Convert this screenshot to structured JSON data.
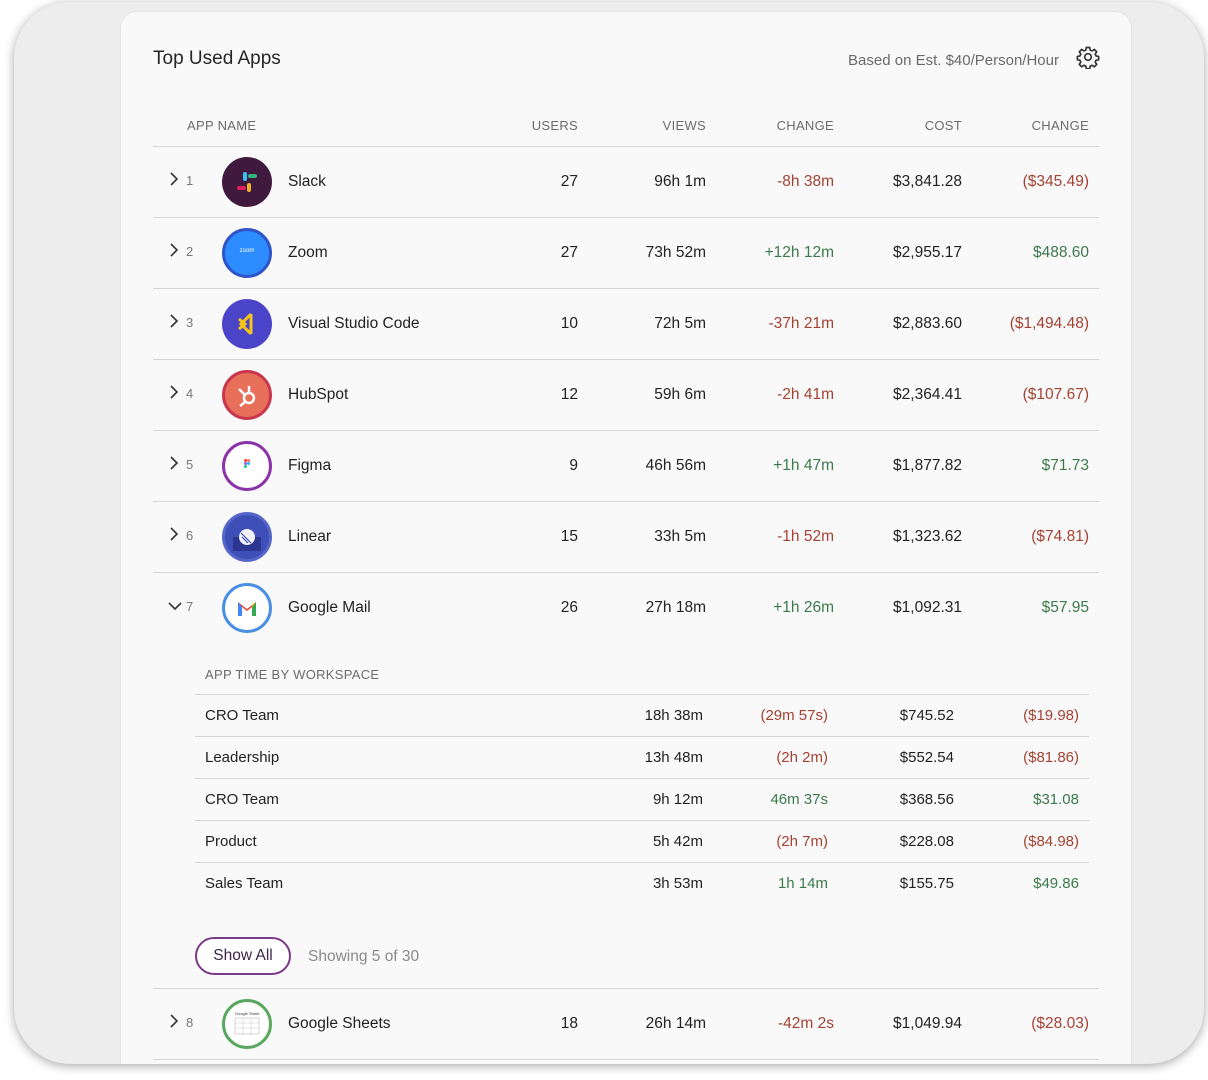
{
  "header": {
    "title": "Top Used Apps",
    "based_on": "Based on Est. $40/Person/Hour",
    "settings_icon": "gear-icon"
  },
  "columns": {
    "app_name": "APP NAME",
    "users": "USERS",
    "views": "VIEWS",
    "change": "CHANGE",
    "cost": "COST",
    "cost_change": "CHANGE"
  },
  "apps": [
    {
      "rank": "1",
      "name": "Slack",
      "users": "27",
      "views": "96h 1m",
      "change": "-8h 38m",
      "cost": "$3,841.28",
      "cost_change": "($345.49)"
    },
    {
      "rank": "2",
      "name": "Zoom",
      "logo_text": "zoom",
      "users": "27",
      "views": "73h 52m",
      "change": "+12h 12m",
      "cost": "$2,955.17",
      "cost_change": "$488.60"
    },
    {
      "rank": "3",
      "name": "Visual Studio Code",
      "users": "10",
      "views": "72h 5m",
      "change": "-37h 21m",
      "cost": "$2,883.60",
      "cost_change": "($1,494.48)"
    },
    {
      "rank": "4",
      "name": "HubSpot",
      "users": "12",
      "views": "59h 6m",
      "change": "-2h 41m",
      "cost": "$2,364.41",
      "cost_change": "($107.67)"
    },
    {
      "rank": "5",
      "name": "Figma",
      "users": "9",
      "views": "46h 56m",
      "change": "+1h 47m",
      "cost": "$1,877.82",
      "cost_change": "$71.73"
    },
    {
      "rank": "6",
      "name": "Linear",
      "users": "15",
      "views": "33h 5m",
      "change": "-1h 52m",
      "cost": "$1,323.62",
      "cost_change": "($74.81)"
    },
    {
      "rank": "7",
      "name": "Google Mail",
      "users": "26",
      "views": "27h 18m",
      "change": "+1h 26m",
      "cost": "$1,092.31",
      "cost_change": "$57.95"
    },
    {
      "rank": "8",
      "name": "Google Sheets",
      "logo_text": "Google Sheet",
      "users": "18",
      "views": "26h 14m",
      "change": "-42m 2s",
      "cost": "$1,049.94",
      "cost_change": "($28.03)"
    }
  ],
  "workspace_breakdown": {
    "heading": "APP TIME BY WORKSPACE",
    "rows": [
      {
        "name": "CRO Team",
        "views": "18h 38m",
        "change": "(29m 57s)",
        "cost": "$745.52",
        "cost_change": "($19.98)"
      },
      {
        "name": "Leadership",
        "views": "13h 48m",
        "change": "(2h 2m)",
        "cost": "$552.54",
        "cost_change": "($81.86)"
      },
      {
        "name": "CRO Team",
        "views": "9h 12m",
        "change": "46m 37s",
        "cost": "$368.56",
        "cost_change": "$31.08"
      },
      {
        "name": "Product",
        "views": "5h 42m",
        "change": "(2h 7m)",
        "cost": "$228.08",
        "cost_change": "($84.98)"
      },
      {
        "name": "Sales Team",
        "views": "3h 53m",
        "change": "1h 14m",
        "cost": "$155.75",
        "cost_change": "$49.86"
      }
    ],
    "show_all_label": "Show All",
    "showing_text": "Showing 5 of 30"
  },
  "colors": {
    "negative": "#a34233",
    "positive": "#3b7a4a",
    "accent": "#7a3a86"
  }
}
